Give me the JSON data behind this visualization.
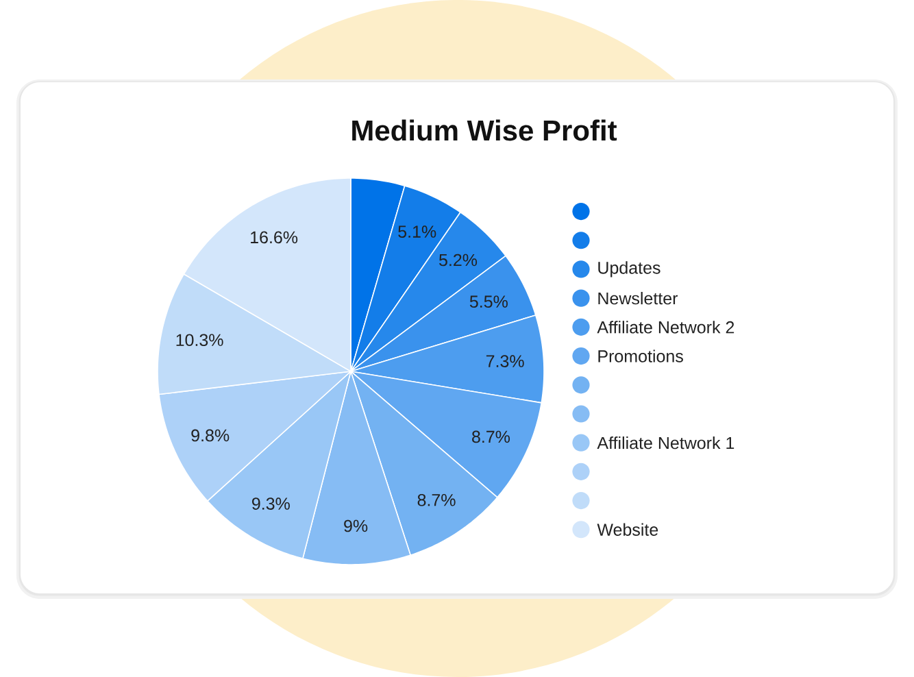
{
  "chart_data": {
    "type": "pie",
    "title": "Medium Wise Profit",
    "categories": [
      null,
      null,
      "Updates",
      "Newsletter",
      "Affiliate Network 2",
      "Promotions",
      null,
      null,
      "Affiliate Network 1",
      null,
      null,
      "Website"
    ],
    "values": [
      4.5,
      5.1,
      5.2,
      5.5,
      7.3,
      8.7,
      8.7,
      9,
      9.3,
      9.8,
      10.3,
      16.6
    ],
    "value_labels": [
      null,
      "5.1%",
      "5.2%",
      "5.5%",
      "7.3%",
      "8.7%",
      "8.7%",
      "9%",
      "9.3%",
      "9.8%",
      "10.3%",
      "16.6%"
    ],
    "colors": [
      "#0073e8",
      "#137de9",
      "#2688eb",
      "#3a92ed",
      "#4d9def",
      "#60a7f1",
      "#73b2f2",
      "#86bcf4",
      "#99c7f6",
      "#add1f8",
      "#c0dcf9",
      "#d3e6fb"
    ],
    "legend": "right"
  }
}
